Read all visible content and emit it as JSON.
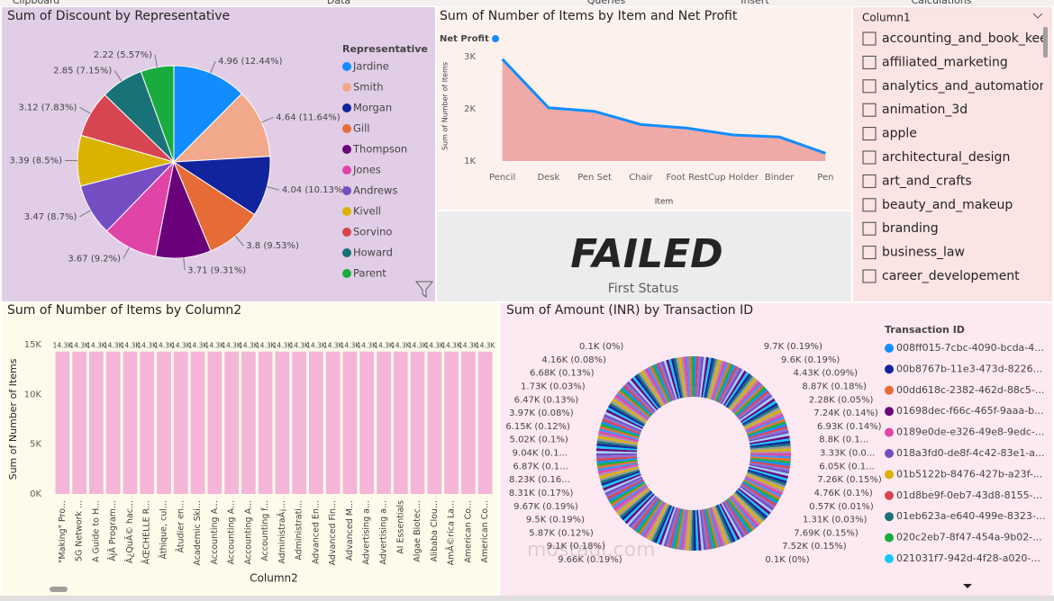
{
  "ribbon": [
    "Clipboard",
    "Data",
    "Queries",
    "Insert",
    "Calculations"
  ],
  "chart_data": [
    {
      "type": "pie",
      "title": "Sum of Discount by Representative",
      "legend_title": "Representative",
      "categories": [
        "Jardine",
        "Smith",
        "Morgan",
        "Gill",
        "Thompson",
        "Jones",
        "Andrews",
        "Kivell",
        "Sorvino",
        "Howard",
        "Parent"
      ],
      "values": [
        4.96,
        4.64,
        4.04,
        3.8,
        3.71,
        3.67,
        3.47,
        3.39,
        3.12,
        2.85,
        2.22
      ],
      "value_labels": [
        "4.96 (12.44%)",
        "4.64 (11.64%)",
        "4.04 (10.13%)",
        "3.8 (9.53%)",
        "3.71 (9.31%)",
        "3.67 (9.2%)",
        "3.47 (8.7%)",
        "3.39 (8.5%)",
        "3.12 (7.83%)",
        "2.85 (7.15%)",
        "2.22 (5.57%)"
      ],
      "colors": [
        "#118dff",
        "#f2a98b",
        "#12239e",
        "#e66c37",
        "#6b007b",
        "#e044a7",
        "#744ec2",
        "#d9b300",
        "#d64550",
        "#197278",
        "#1aab40"
      ]
    },
    {
      "type": "line",
      "title": "Sum of Number of Items by Item and Net Profit",
      "x_label": "Item",
      "y_label": "Sum of Number of Items",
      "categories": [
        "Pencil",
        "Desk",
        "Pen Set",
        "Chair",
        "Foot Rest",
        "Cup Holder",
        "Binder",
        "Pen"
      ],
      "series": [
        {
          "name": "Net Profit",
          "color": "#118dff",
          "area_color": "#efaaa8",
          "values": [
            2950,
            2020,
            1950,
            1700,
            1630,
            1500,
            1460,
            1150
          ]
        }
      ],
      "ylim": [
        1000,
        3100
      ],
      "yticks": [
        {
          "value": 1000,
          "label": "1K"
        },
        {
          "value": 2000,
          "label": "2K"
        },
        {
          "value": 3000,
          "label": "3K"
        }
      ]
    },
    {
      "type": "bar",
      "title": "Sum of Number of Items by Column2",
      "x_label": "Column2",
      "y_label": "Sum of Number of Items",
      "color": "#f4b5d8",
      "categories": [
        "\"Making\" Pro...",
        "5G Network ...",
        "A Guide to H...",
        "ÂjÂ Program...",
        "Â¿QuÃ© hac...",
        "ÃŒCHELLE R...",
        "Ãthique, cul...",
        "Ãtudier en...",
        "Academic Ski...",
        "Accounting A...",
        "Accounting A...",
        "Accounting A...",
        "Accounting f...",
        "AdministraÃ¡...",
        "Administrati...",
        "Advanced En...",
        "Advanced Fin...",
        "Advanced M...",
        "Advertising a...",
        "Advertising a...",
        "AI Essentials",
        "Algae Biotec...",
        "Alibaba Clou...",
        "AmÃ©rica La...",
        "American Co...",
        "American Co..."
      ],
      "values": [
        14300,
        14300,
        14300,
        14300,
        14300,
        14300,
        14300,
        14300,
        14300,
        14300,
        14300,
        14300,
        14300,
        14300,
        14300,
        14300,
        14300,
        14300,
        14300,
        14300,
        14300,
        14300,
        14300,
        14300,
        14300,
        14300
      ],
      "value_labels": [
        "14.3K",
        "14.3K",
        "14.3K",
        "14.3K",
        "14.3K",
        "14.3K",
        "14.3K",
        "14.3K",
        "14.3K",
        "14.3K",
        "14.3K",
        "14.3K",
        "14.3K",
        "14.3K",
        "14.3K",
        "14.3K",
        "14.3K",
        "14.3K",
        "14.3K",
        "14.3K",
        "14.3K",
        "14.3K",
        "14.3K",
        "14.3K",
        "14.3K",
        "14.3K"
      ],
      "ylim": [
        0,
        15000
      ],
      "yticks": [
        {
          "value": 0,
          "label": "0K"
        },
        {
          "value": 5000,
          "label": "5K"
        },
        {
          "value": 10000,
          "label": "10K"
        },
        {
          "value": 15000,
          "label": "15K"
        }
      ]
    },
    {
      "type": "donut",
      "title": "Sum of Amount (INR) by Transaction ID",
      "legend_title": "Transaction ID",
      "slice_labels": [
        "9.7K (0.19%)",
        "9.6K (0.19%)",
        "4.43K (0.09%)",
        "8.87K (0.18%)",
        "2.28K (0.05%)",
        "7.24K (0.14%)",
        "6.93K (0.14%)",
        "8.8K (0.1...",
        "3.33K (0.0...",
        "6.05K (0.1...",
        "7.26K (0.15%)",
        "4.76K (0.1%)",
        "0.57K (0.01%)",
        "1.31K (0.03%)",
        "7.69K (0.15%)",
        "7.52K (0.15%)",
        "0.1K (0%)",
        "9.66K (0.19%)",
        "9.1K (0.18%)",
        "5.87K (0.12%)",
        "9.5K (0.19%)",
        "9.67K (0.19%)",
        "8.31K (0.17%)",
        "8.23K (0.16...",
        "6.87K (0.1...",
        "9.04K (0.1...",
        "5.02K (0.1%)",
        "6.15K (0.12%)",
        "3.97K (0.08%)",
        "6.47K (0.13%)",
        "1.73K (0.03%)",
        "6.68K (0.13%)",
        "4.16K (0.08%)",
        "0.1K (0%)"
      ],
      "legend": [
        "008ff015-7cbc-4090-bcda-4...",
        "00b8767b-11e3-473d-8226...",
        "00dd618c-2382-462d-88c5-...",
        "01698dec-f66c-465f-9aaa-b...",
        "0189e0de-e326-49e8-9edc-...",
        "018a3fd0-de8f-4c42-83e1-a...",
        "01b5122b-8476-427b-a23f-...",
        "01d8be9f-0eb7-43d8-8155-...",
        "01eb623a-e640-499e-8323-...",
        "020c2eb7-8f47-454a-9b02-...",
        "021031f7-942d-4f28-a020-..."
      ],
      "colors": [
        "#118dff",
        "#12239e",
        "#e66c37",
        "#6b007b",
        "#e044a7",
        "#744ec2",
        "#d9b300",
        "#d64550",
        "#197278",
        "#1aab40",
        "#15c6f4"
      ]
    }
  ],
  "card": {
    "value": "FAILED",
    "label": "First Status"
  },
  "slicer": {
    "title": "Column1",
    "items": [
      "accounting_and_book_kee",
      "affiliated_marketing",
      "analytics_and_automations",
      "animation_3d",
      "apple",
      "architectural_design",
      "art_and_crafts",
      "beauty_and_makeup",
      "branding",
      "business_law",
      "career_developement"
    ]
  },
  "watermark": "mostaql.com"
}
